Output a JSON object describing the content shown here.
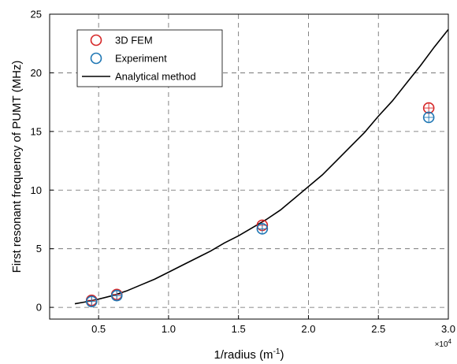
{
  "chart_data": {
    "type": "scatter",
    "xlabel": "1/radius (m",
    "xlabel_sup": "-1",
    "xlabel_close": ")",
    "ylabel": "First resonant frequency of PUMT (MHz)",
    "xlim": [
      0.15,
      3.0
    ],
    "ylim": [
      -1,
      25
    ],
    "x_multiplier_base": "×10",
    "x_multiplier_exp": "4",
    "x_ticks": [
      0.5,
      1.0,
      1.5,
      2.0,
      2.5,
      3.0
    ],
    "x_tick_labels": [
      "0.5",
      "1.0",
      "1.5",
      "2.0",
      "2.5",
      "3.0"
    ],
    "y_ticks": [
      0,
      5,
      10,
      15,
      20,
      25
    ],
    "y_tick_labels": [
      "0",
      "5",
      "10",
      "15",
      "20",
      "25"
    ],
    "grid": true,
    "legend_position": "top-left",
    "series": [
      {
        "name": "3D FEM",
        "kind": "marker-circle",
        "color": "#d62728",
        "x": [
          0.45,
          0.63,
          1.67,
          2.86
        ],
        "y": [
          0.6,
          1.1,
          7.0,
          17.0
        ]
      },
      {
        "name": "Experiment",
        "kind": "marker-circle",
        "color": "#1f77b4",
        "x": [
          0.45,
          0.63,
          1.67,
          2.86
        ],
        "y": [
          0.5,
          1.0,
          6.7,
          16.2
        ]
      },
      {
        "name": "Analytical method",
        "kind": "line",
        "color": "#000000",
        "x": [
          0.33,
          0.4,
          0.5,
          0.6,
          0.7,
          0.8,
          0.9,
          1.0,
          1.1,
          1.2,
          1.3,
          1.4,
          1.5,
          1.6,
          1.7,
          1.8,
          1.9,
          2.0,
          2.1,
          2.2,
          2.3,
          2.4,
          2.5,
          2.6,
          2.7,
          2.8,
          2.9,
          3.0
        ],
        "y": [
          0.3,
          0.45,
          0.7,
          1.0,
          1.4,
          1.9,
          2.4,
          3.0,
          3.6,
          4.2,
          4.8,
          5.5,
          6.1,
          6.8,
          7.5,
          8.3,
          9.3,
          10.3,
          11.3,
          12.5,
          13.7,
          14.9,
          16.3,
          17.6,
          19.1,
          20.6,
          22.2,
          23.7
        ]
      }
    ]
  }
}
